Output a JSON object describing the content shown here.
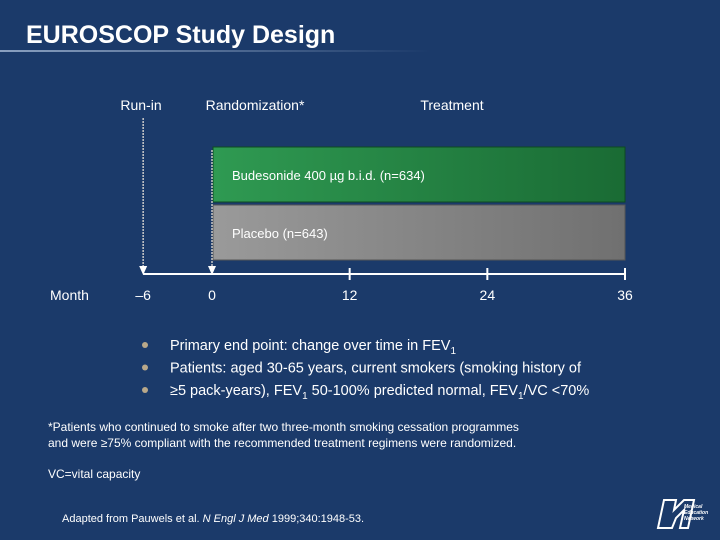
{
  "title": "EUROSCOP Study Design",
  "phases": {
    "run_in": "Run-in",
    "randomization": "Randomization*",
    "treatment": "Treatment"
  },
  "arms": [
    "Budesonide 400 µg b.i.d. (n=634)",
    "Placebo (n=643)"
  ],
  "timeline": {
    "label": "Month",
    "ticks": [
      {
        "value": -6,
        "label": "–6"
      },
      0,
      12,
      24,
      36
    ]
  },
  "bullets": [
    [
      "Primary end point: change over time in FEV",
      "1"
    ],
    [
      "Patients: aged 30-65 years, current smokers (smoking history of"
    ],
    [
      "≥5 pack-years), FEV",
      "1",
      " 50-100% predicted normal, FEV",
      "1",
      "/VC <70%"
    ]
  ],
  "footnote": [
    "*Patients who continued to smoke after two three-month smoking cessation programmes",
    "and were ≥75% compliant with the recommended treatment regimens were randomized."
  ],
  "abbreviation": "VC=vital capacity",
  "citation": [
    "Adapted from Pauwels et al. ",
    "N Engl J Med",
    " 1999;340:1948-53."
  ],
  "logo": [
    "Medical",
    "Education",
    "Network"
  ]
}
